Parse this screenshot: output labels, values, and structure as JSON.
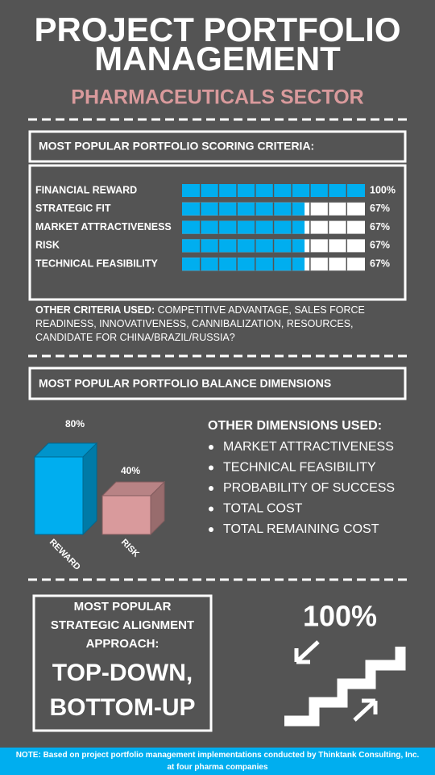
{
  "header": {
    "title_lines": [
      "PROJECT PORTFOLIO",
      "MANAGEMENT"
    ],
    "subtitle": "PHARMACEUTICALS SECTOR"
  },
  "chart_data": [
    {
      "type": "hbar",
      "title": "MOST POPULAR PORTFOLIO SCORING CRITERIA:",
      "categories": [
        "FINANCIAL REWARD",
        "STRATEGIC FIT",
        "MARKET ATTRACTIVENESS",
        "RISK",
        "TECHNICAL FEASIBILITY"
      ],
      "values": [
        100,
        67,
        67,
        67,
        67
      ],
      "value_labels": [
        "100%",
        "67%",
        "67%",
        "67%",
        "67%"
      ],
      "xlim": [
        0,
        100
      ],
      "color": "#00aeef"
    },
    {
      "type": "bar3d",
      "title": "MOST POPULAR PORTFOLIO BALANCE DIMENSIONS",
      "categories": [
        "REWARD",
        "RISK"
      ],
      "values": [
        80,
        40
      ],
      "value_labels": [
        "80%",
        "40%"
      ],
      "ylim": [
        0,
        100
      ],
      "colors": [
        "#00aeef",
        "#d99a9c"
      ]
    }
  ],
  "other_criteria": {
    "label": "OTHER CRITERIA USED:",
    "text": "COMPETITIVE ADVANTAGE, SALES FORCE READINESS, INNOVATIVENESS, CANNIBALIZATION, RESOURCES, CANDIDATE FOR CHINA/BRAZIL/RUSSIA?"
  },
  "other_dimensions": {
    "heading": "OTHER DIMENSIONS USED:",
    "items": [
      "MARKET ATTRACTIVENESS",
      "TECHNICAL FEASIBILITY",
      "PROBABILITY OF SUCCESS",
      "TOTAL COST",
      "TOTAL REMAINING COST"
    ]
  },
  "alignment": {
    "heading_lines": [
      "MOST POPULAR",
      "STRATEGIC ALIGNMENT",
      "APPROACH:"
    ],
    "approach_lines": [
      "TOP-DOWN,",
      "BOTTOM-UP"
    ],
    "share": "100%"
  },
  "note": "NOTE: Based on project portfolio management implementations conducted by Thinktank Consulting, Inc. at four pharma companies"
}
